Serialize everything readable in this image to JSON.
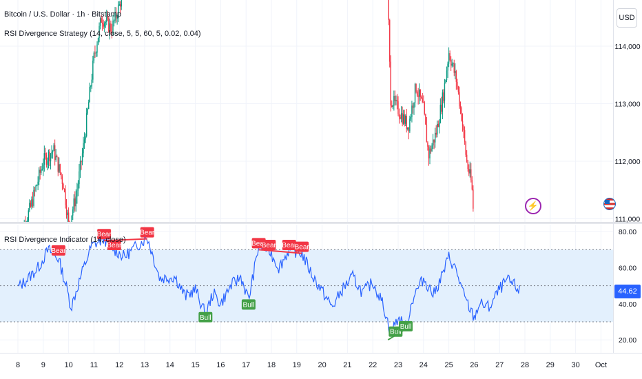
{
  "header": {
    "symbol_title": "Bitcoin / U.S. Dollar · 1h · Bitstamp",
    "strategy_label": "RSI Divergence Strategy (14, close, 5, 5, 60, 5, 0.02, 0.04)",
    "indicator_label": "RSI Divergence Indicator (14, close)",
    "currency_button": "USD"
  },
  "price_axis": {
    "labels": [
      "114,000",
      "113,000",
      "112,000",
      "111,000"
    ],
    "values": [
      114000,
      113000,
      112000,
      111000
    ]
  },
  "rsi_axis": {
    "labels": [
      "80.00",
      "60.00",
      "40.00",
      "20.00"
    ],
    "values": [
      80,
      60,
      40,
      20
    ],
    "current_value": "44.62"
  },
  "time_axis": {
    "labels": [
      "8",
      "9",
      "10",
      "11",
      "12",
      "13",
      "14",
      "15",
      "16",
      "17",
      "18",
      "19",
      "20",
      "21",
      "22",
      "23",
      "24",
      "25",
      "26",
      "27",
      "28",
      "29",
      "30",
      "Oct"
    ]
  },
  "colors": {
    "up": "#089981",
    "down": "#f23645",
    "rsi_line": "#2962ff",
    "band": "#e3f0fd",
    "bear": "#f23645",
    "bull": "#43a047",
    "tag": "#2962ff"
  },
  "icons": [
    "bolt-icon",
    "flag-icon"
  ],
  "signals": {
    "bear": [
      {
        "label": "Bear",
        "day": 9.6,
        "rsi": 69
      },
      {
        "label": "Bear",
        "day": 11.4,
        "rsi": 78
      },
      {
        "label": "Bear",
        "day": 11.8,
        "rsi": 72
      },
      {
        "label": "Bear",
        "day": 13.1,
        "rsi": 79
      },
      {
        "label": "Bear",
        "day": 17.5,
        "rsi": 73
      },
      {
        "label": "Bear",
        "day": 17.9,
        "rsi": 72
      },
      {
        "label": "Bear",
        "day": 18.7,
        "rsi": 72
      },
      {
        "label": "Bear",
        "day": 19.2,
        "rsi": 71
      }
    ],
    "bull": [
      {
        "label": "Bull",
        "day": 15.4,
        "rsi": 32
      },
      {
        "label": "Bull",
        "day": 17.1,
        "rsi": 39
      },
      {
        "label": "Bull",
        "day": 22.9,
        "rsi": 24
      },
      {
        "label": "Bull",
        "day": 23.3,
        "rsi": 27
      }
    ]
  }
}
